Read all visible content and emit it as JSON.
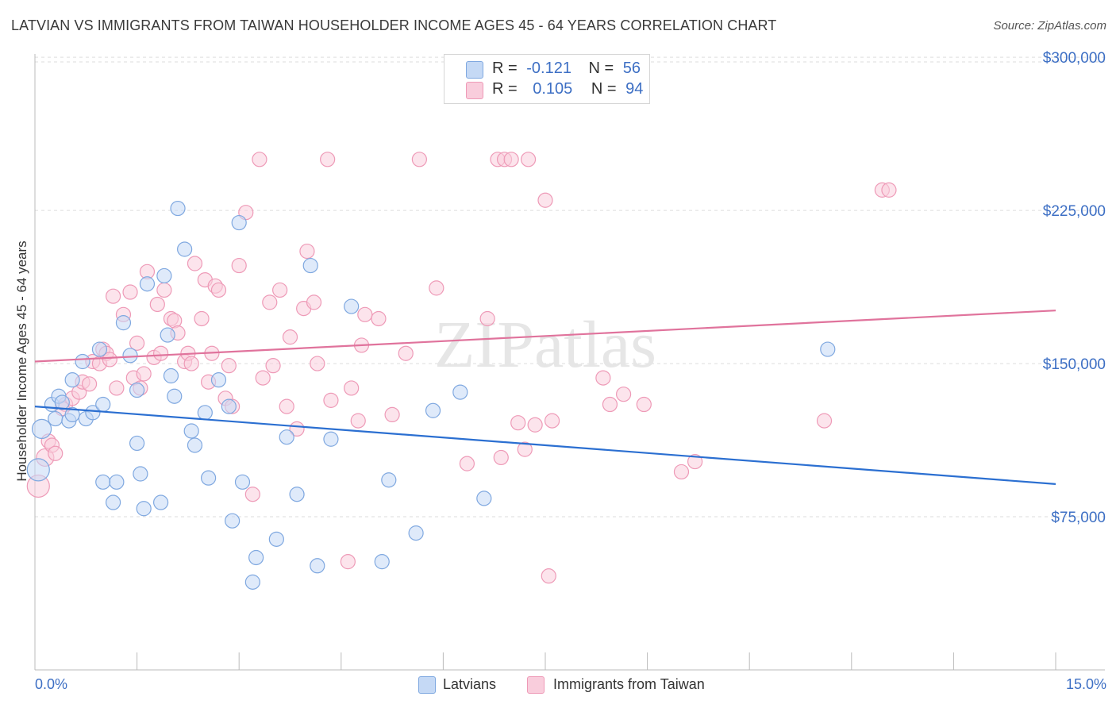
{
  "title": "LATVIAN VS IMMIGRANTS FROM TAIWAN HOUSEHOLDER INCOME AGES 45 - 64 YEARS CORRELATION CHART",
  "source": "Source: ZipAtlas.com",
  "watermark": "ZIPatlas",
  "legend": {
    "rows": [
      {
        "r_label": "R =",
        "r_value": "-0.121",
        "n_label": "N =",
        "n_value": "56"
      },
      {
        "r_label": "R =",
        "r_value": "0.105",
        "n_label": "N =",
        "n_value": "94"
      }
    ]
  },
  "bottom_legend": [
    "Latvians",
    "Immigrants from Taiwan"
  ],
  "colors": {
    "latvians_fill": "#c5d9f5",
    "latvians_stroke": "#7fa8e0",
    "latvians_line": "#2b6fd1",
    "taiwan_fill": "#f9cddc",
    "taiwan_stroke": "#ee9ab7",
    "taiwan_line": "#e0739c",
    "tick_label": "#3d6fc4",
    "grid": "#dddddd"
  },
  "chart_data": {
    "type": "scatter",
    "ylabel": "Householder Income Ages 45 - 64 years",
    "xlim": [
      0,
      15
    ],
    "ylim": [
      0,
      312500
    ],
    "x_tick_labels": [
      "0.0%",
      "15.0%"
    ],
    "y_ticks": [
      75000,
      150000,
      225000,
      300000
    ],
    "y_tick_labels": [
      "$75,000",
      "$150,000",
      "$225,000",
      "$300,000"
    ],
    "grid": true,
    "legend_position": "top-center",
    "series": [
      {
        "name": "Latvians",
        "trend": {
          "x": [
            0,
            15
          ],
          "y": [
            129000,
            91000
          ]
        },
        "points": [
          [
            0.1,
            118000,
            12
          ],
          [
            0.25,
            130000,
            9
          ],
          [
            0.3,
            123000,
            9
          ],
          [
            0.35,
            134000,
            9
          ],
          [
            0.4,
            131000,
            9
          ],
          [
            0.5,
            122000,
            9
          ],
          [
            0.55,
            125000,
            9
          ],
          [
            0.55,
            142000,
            9
          ],
          [
            0.7,
            151000,
            9
          ],
          [
            0.75,
            123000,
            9
          ],
          [
            0.85,
            126000,
            9
          ],
          [
            0.95,
            157000,
            9
          ],
          [
            1.0,
            92000,
            9
          ],
          [
            1.0,
            130000,
            9
          ],
          [
            1.15,
            82000,
            9
          ],
          [
            1.2,
            92000,
            9
          ],
          [
            1.3,
            170000,
            9
          ],
          [
            1.4,
            154000,
            9
          ],
          [
            1.5,
            137000,
            9
          ],
          [
            1.5,
            111000,
            9
          ],
          [
            1.55,
            96000,
            9
          ],
          [
            1.6,
            79000,
            9
          ],
          [
            1.65,
            189000,
            9
          ],
          [
            1.85,
            82000,
            9
          ],
          [
            1.9,
            193000,
            9
          ],
          [
            1.95,
            164000,
            9
          ],
          [
            2.0,
            144000,
            9
          ],
          [
            2.05,
            134000,
            9
          ],
          [
            2.1,
            226000,
            9
          ],
          [
            2.2,
            206000,
            9
          ],
          [
            2.3,
            117000,
            9
          ],
          [
            2.35,
            110000,
            9
          ],
          [
            2.5,
            126000,
            9
          ],
          [
            2.55,
            94000,
            9
          ],
          [
            2.7,
            142000,
            9
          ],
          [
            2.85,
            129000,
            9
          ],
          [
            2.9,
            73000,
            9
          ],
          [
            3.0,
            219000,
            9
          ],
          [
            3.05,
            92000,
            9
          ],
          [
            3.25,
            55000,
            9
          ],
          [
            3.2,
            43000,
            9
          ],
          [
            3.55,
            64000,
            9
          ],
          [
            3.7,
            114000,
            9
          ],
          [
            3.85,
            86000,
            9
          ],
          [
            4.05,
            198000,
            9
          ],
          [
            4.15,
            51000,
            9
          ],
          [
            4.35,
            113000,
            9
          ],
          [
            4.65,
            178000,
            9
          ],
          [
            5.1,
            53000,
            9
          ],
          [
            5.2,
            93000,
            9
          ],
          [
            5.6,
            67000,
            9
          ],
          [
            5.85,
            127000,
            9
          ],
          [
            6.25,
            136000,
            9
          ],
          [
            6.6,
            84000,
            9
          ],
          [
            11.65,
            157000,
            9
          ],
          [
            0.05,
            98000,
            14
          ]
        ]
      },
      {
        "name": "Immigrants from Taiwan",
        "trend": {
          "x": [
            0,
            15
          ],
          "y": [
            151000,
            176000
          ]
        },
        "points": [
          [
            0.05,
            90000,
            14
          ],
          [
            0.15,
            104000,
            11
          ],
          [
            0.2,
            112000,
            9
          ],
          [
            0.25,
            110000,
            9
          ],
          [
            0.3,
            106000,
            9
          ],
          [
            0.45,
            130000,
            9
          ],
          [
            0.55,
            133000,
            9
          ],
          [
            0.65,
            136000,
            9
          ],
          [
            0.7,
            141000,
            9
          ],
          [
            0.85,
            151000,
            9
          ],
          [
            0.95,
            150000,
            9
          ],
          [
            1.0,
            157000,
            9
          ],
          [
            1.05,
            155000,
            9
          ],
          [
            1.15,
            183000,
            9
          ],
          [
            1.2,
            138000,
            9
          ],
          [
            1.3,
            174000,
            9
          ],
          [
            1.4,
            185000,
            9
          ],
          [
            1.45,
            143000,
            9
          ],
          [
            1.5,
            160000,
            9
          ],
          [
            1.6,
            145000,
            9
          ],
          [
            1.65,
            195000,
            9
          ],
          [
            1.75,
            153000,
            9
          ],
          [
            1.8,
            179000,
            9
          ],
          [
            1.85,
            155000,
            9
          ],
          [
            1.9,
            186000,
            9
          ],
          [
            2.0,
            172000,
            9
          ],
          [
            2.05,
            171000,
            9
          ],
          [
            2.1,
            165000,
            9
          ],
          [
            2.2,
            151000,
            9
          ],
          [
            2.25,
            155000,
            9
          ],
          [
            2.3,
            150000,
            9
          ],
          [
            2.35,
            199000,
            9
          ],
          [
            2.45,
            172000,
            9
          ],
          [
            2.5,
            191000,
            9
          ],
          [
            2.55,
            141000,
            9
          ],
          [
            2.6,
            155000,
            9
          ],
          [
            2.65,
            188000,
            9
          ],
          [
            2.7,
            186000,
            9
          ],
          [
            2.8,
            133000,
            9
          ],
          [
            2.85,
            149000,
            9
          ],
          [
            2.9,
            129000,
            9
          ],
          [
            3.0,
            198000,
            9
          ],
          [
            3.1,
            224000,
            9
          ],
          [
            3.2,
            86000,
            9
          ],
          [
            3.3,
            250000,
            9
          ],
          [
            3.35,
            143000,
            9
          ],
          [
            3.45,
            180000,
            9
          ],
          [
            3.5,
            149000,
            9
          ],
          [
            3.6,
            186000,
            9
          ],
          [
            3.7,
            129000,
            9
          ],
          [
            3.75,
            163000,
            9
          ],
          [
            3.85,
            118000,
            9
          ],
          [
            3.95,
            177000,
            9
          ],
          [
            4.0,
            205000,
            9
          ],
          [
            4.1,
            180000,
            9
          ],
          [
            4.15,
            150000,
            9
          ],
          [
            4.3,
            250000,
            9
          ],
          [
            4.35,
            132000,
            9
          ],
          [
            4.6,
            53000,
            9
          ],
          [
            4.65,
            138000,
            9
          ],
          [
            4.75,
            122000,
            9
          ],
          [
            4.8,
            159000,
            9
          ],
          [
            4.85,
            174000,
            9
          ],
          [
            5.05,
            172000,
            9
          ],
          [
            5.25,
            125000,
            9
          ],
          [
            5.45,
            155000,
            9
          ],
          [
            5.65,
            250000,
            9
          ],
          [
            5.9,
            187000,
            9
          ],
          [
            6.35,
            101000,
            9
          ],
          [
            6.65,
            172000,
            9
          ],
          [
            6.8,
            250000,
            9
          ],
          [
            6.85,
            104000,
            9
          ],
          [
            6.9,
            250000,
            9
          ],
          [
            7.0,
            250000,
            9
          ],
          [
            7.1,
            121000,
            9
          ],
          [
            7.2,
            108000,
            9
          ],
          [
            7.25,
            250000,
            9
          ],
          [
            7.35,
            120000,
            9
          ],
          [
            7.5,
            230000,
            9
          ],
          [
            7.55,
            46000,
            9
          ],
          [
            7.6,
            122000,
            9
          ],
          [
            8.35,
            143000,
            9
          ],
          [
            8.45,
            130000,
            9
          ],
          [
            8.65,
            135000,
            9
          ],
          [
            8.95,
            130000,
            9
          ],
          [
            9.5,
            97000,
            9
          ],
          [
            9.7,
            102000,
            9
          ],
          [
            11.6,
            122000,
            9
          ],
          [
            12.45,
            235000,
            9
          ],
          [
            12.55,
            235000,
            9
          ],
          [
            1.1,
            152000,
            9
          ],
          [
            1.55,
            138000,
            9
          ],
          [
            0.4,
            128000,
            9
          ],
          [
            0.8,
            140000,
            9
          ]
        ]
      }
    ]
  }
}
